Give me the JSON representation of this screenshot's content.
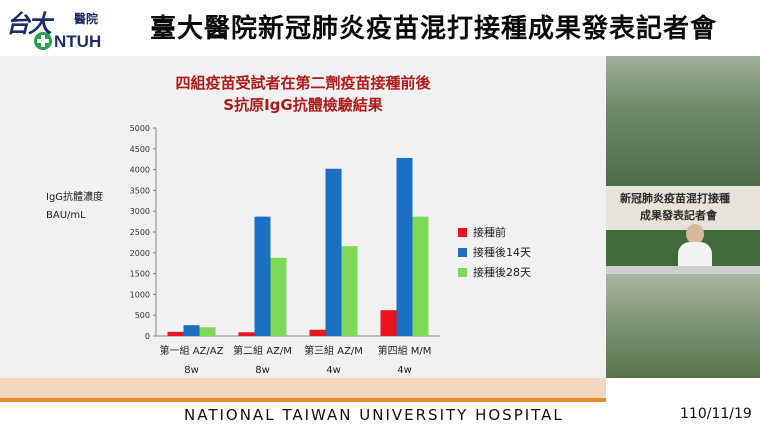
{
  "header": {
    "logo_script": "台大",
    "logo_hospital": "醫院",
    "logo_ntuh": "NTUH",
    "title": "臺大醫院新冠肺炎疫苗混打接種成果發表記者會"
  },
  "slide": {
    "title_line1": "四組疫苗受試者在第二劑疫苗接種前後",
    "title_line2": "S抗原IgG抗體檢驗結果",
    "ylabel_line1": "IgG抗體濃度",
    "ylabel_line2": "BAU/mL"
  },
  "chart_data": {
    "type": "bar",
    "categories": [
      [
        "第一組 AZ/AZ",
        "8w"
      ],
      [
        "第二組 AZ/M",
        "8w"
      ],
      [
        "第三組 AZ/M",
        "4w"
      ],
      [
        "第四組 M/M",
        "4w"
      ]
    ],
    "series": [
      {
        "name": "接種前",
        "color": "#e8141e",
        "values": [
          100,
          90,
          150,
          620
        ]
      },
      {
        "name": "接種後14天",
        "color": "#1b6fc2",
        "values": [
          260,
          2870,
          4020,
          4280
        ]
      },
      {
        "name": "接種後28天",
        "color": "#7ed957",
        "values": [
          210,
          1880,
          2160,
          2870
        ]
      }
    ],
    "ylim": [
      0,
      5000
    ],
    "yticks": [
      0,
      500,
      1000,
      1500,
      2000,
      2500,
      3000,
      3500,
      4000,
      4500,
      5000
    ],
    "grid": false,
    "legend_position": "right"
  },
  "video": {
    "backdrop_line1": "新冠肺炎疫苗混打接種",
    "backdrop_line2": "成果發表記者會"
  },
  "footer": {
    "name": "NATIONAL TAIWAN UNIVERSITY HOSPITAL",
    "date": "110/11/19"
  }
}
